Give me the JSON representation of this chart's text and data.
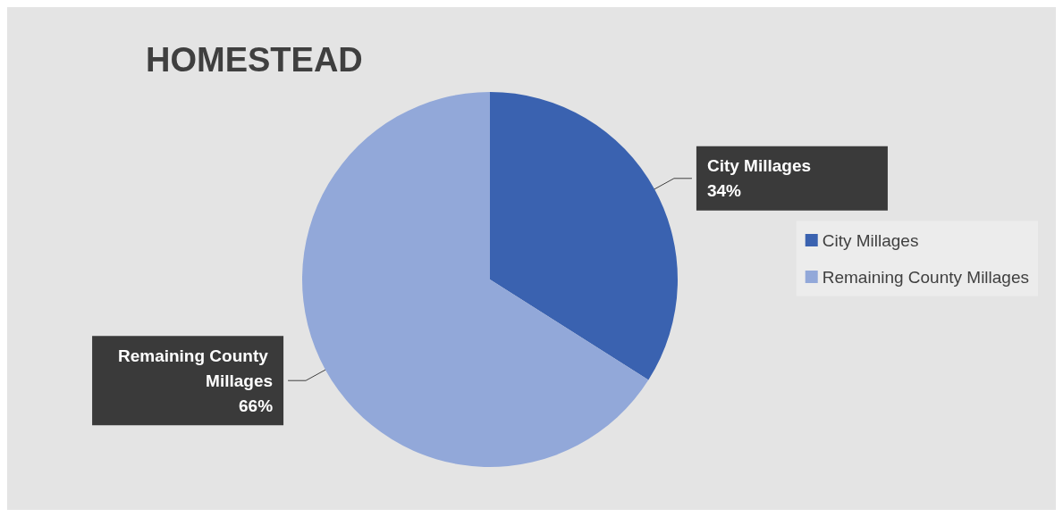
{
  "chart_data": {
    "type": "pie",
    "title": "HOMESTEAD",
    "categories": [
      "City Millages",
      "Remaining County Millages"
    ],
    "values": [
      34,
      66
    ],
    "colors": [
      "#3a62b0",
      "#92a8d9"
    ],
    "value_labels": [
      "34%",
      "66%"
    ],
    "legend": "right"
  }
}
